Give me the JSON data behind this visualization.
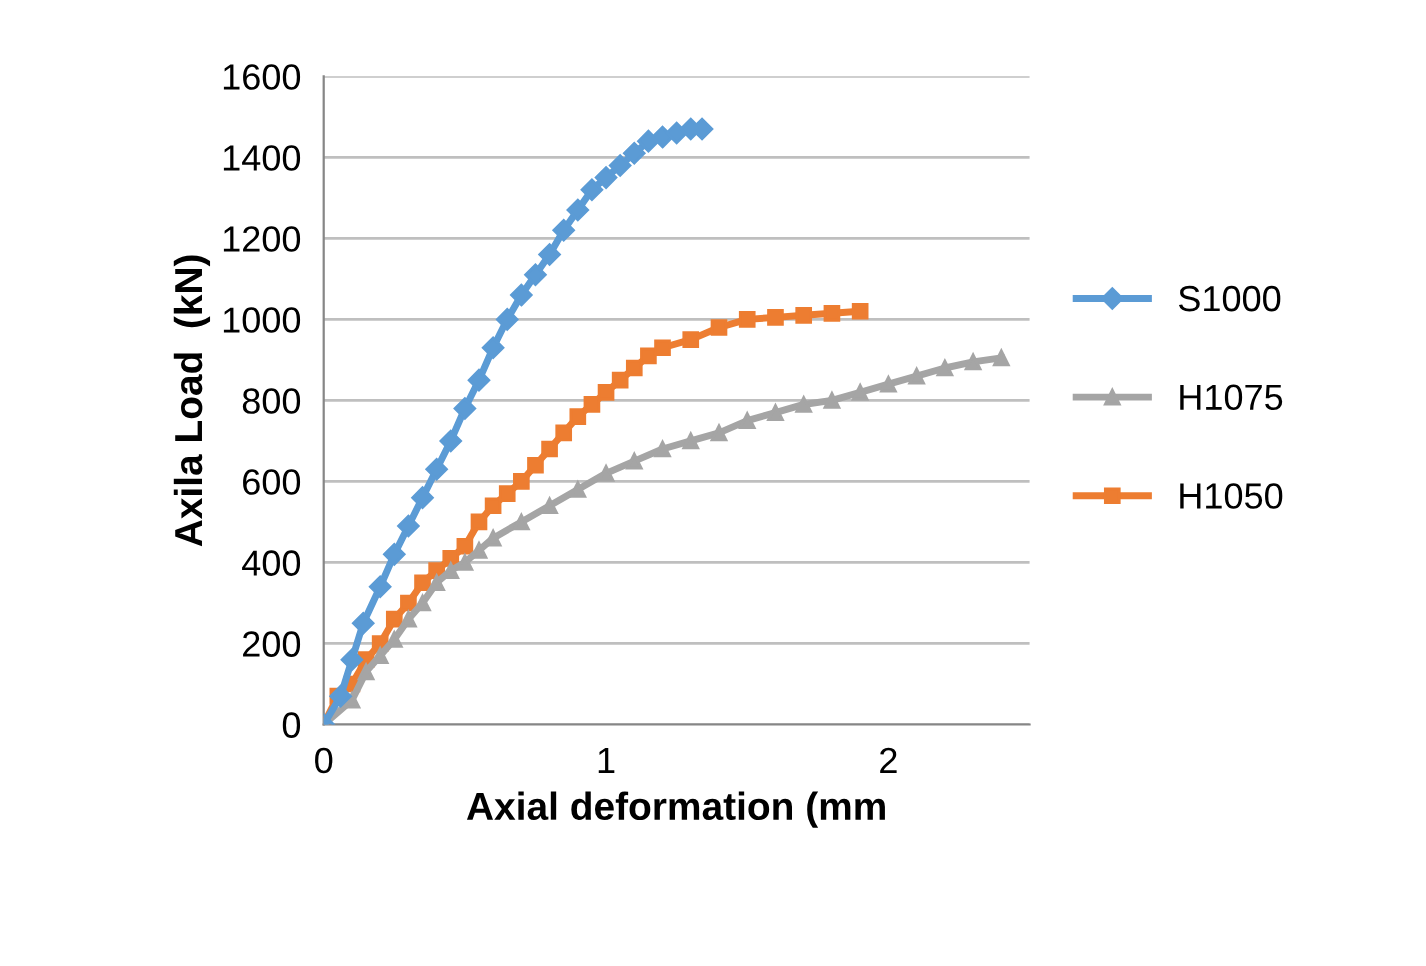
{
  "chart_data": {
    "type": "line",
    "xlabel": "Axial deformation (mm",
    "ylabel": "Axila Load  (kN)",
    "xlim": [
      0,
      2.5
    ],
    "xticks": [
      0,
      1,
      2
    ],
    "ylim": [
      0,
      1600
    ],
    "yticks": [
      0,
      200,
      400,
      600,
      800,
      1000,
      1200,
      1400,
      1600
    ],
    "grid": "y",
    "legend": "right",
    "series": [
      {
        "name": "S1000",
        "color": "#5b9bd5",
        "marker": "diamond",
        "x": [
          0,
          0.06,
          0.1,
          0.14,
          0.2,
          0.25,
          0.3,
          0.35,
          0.4,
          0.45,
          0.5,
          0.55,
          0.6,
          0.65,
          0.7,
          0.75,
          0.8,
          0.85,
          0.9,
          0.95,
          1.0,
          1.05,
          1.1,
          1.15,
          1.2,
          1.25,
          1.3,
          1.34
        ],
        "values": [
          0,
          70,
          160,
          250,
          340,
          420,
          490,
          560,
          630,
          700,
          780,
          850,
          930,
          1000,
          1060,
          1110,
          1160,
          1220,
          1270,
          1320,
          1350,
          1380,
          1410,
          1440,
          1450,
          1460,
          1470,
          1470
        ]
      },
      {
        "name": "H1075",
        "color": "#a5a5a5",
        "marker": "triangle",
        "x": [
          0,
          0.1,
          0.15,
          0.2,
          0.25,
          0.3,
          0.35,
          0.4,
          0.45,
          0.5,
          0.55,
          0.6,
          0.7,
          0.8,
          0.9,
          1.0,
          1.1,
          1.2,
          1.3,
          1.4,
          1.5,
          1.6,
          1.7,
          1.8,
          1.9,
          2.0,
          2.1,
          2.2,
          2.3,
          2.4
        ],
        "values": [
          0,
          60,
          130,
          170,
          210,
          260,
          300,
          350,
          380,
          400,
          430,
          460,
          500,
          540,
          580,
          620,
          650,
          680,
          700,
          720,
          750,
          770,
          790,
          800,
          820,
          840,
          860,
          880,
          895,
          905
        ]
      },
      {
        "name": "H1050",
        "color": "#ed7d31",
        "marker": "square",
        "x": [
          0,
          0.05,
          0.1,
          0.15,
          0.2,
          0.25,
          0.3,
          0.35,
          0.4,
          0.45,
          0.5,
          0.55,
          0.6,
          0.65,
          0.7,
          0.75,
          0.8,
          0.85,
          0.9,
          0.95,
          1.0,
          1.05,
          1.1,
          1.15,
          1.2,
          1.3,
          1.4,
          1.5,
          1.6,
          1.7,
          1.8,
          1.9
        ],
        "values": [
          0,
          70,
          100,
          160,
          200,
          260,
          300,
          350,
          380,
          410,
          440,
          500,
          540,
          570,
          600,
          640,
          680,
          720,
          760,
          790,
          820,
          850,
          880,
          910,
          930,
          950,
          980,
          1000,
          1005,
          1010,
          1015,
          1020
        ]
      }
    ]
  }
}
